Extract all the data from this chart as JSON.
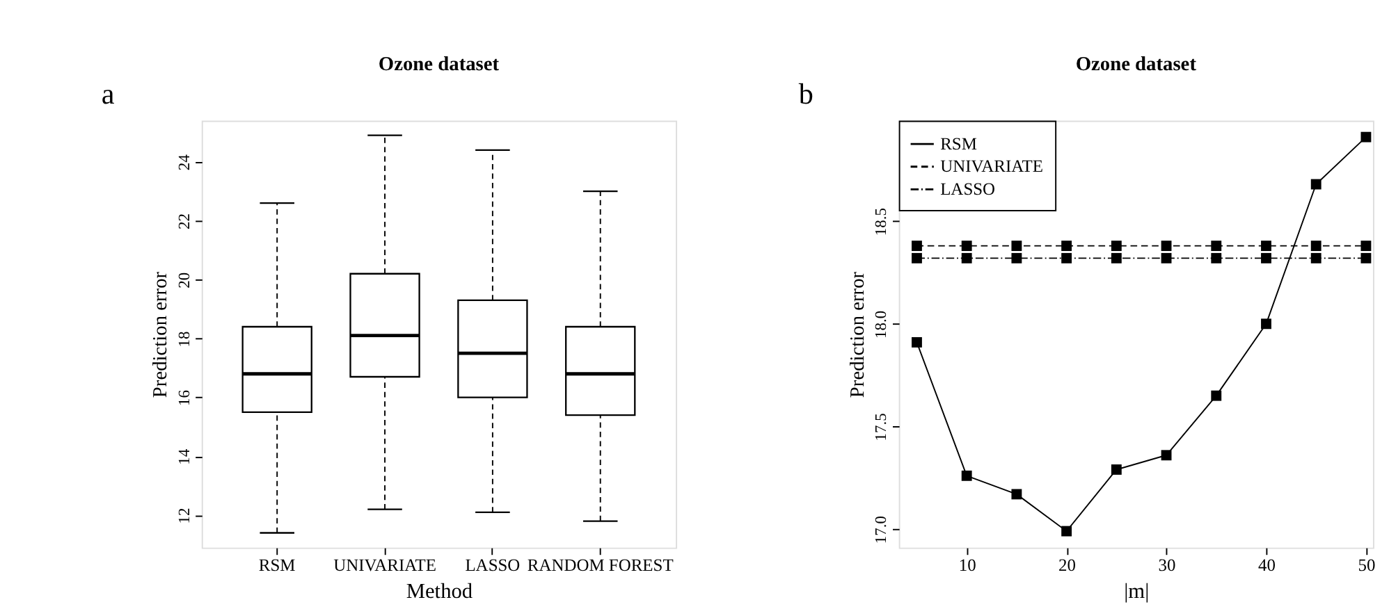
{
  "chart_data": [
    {
      "type": "box",
      "title": "Ozone dataset",
      "xlabel": "Method",
      "ylabel": "Prediction error",
      "annotations": [
        "a"
      ],
      "categories": [
        "RSM",
        "UNIVARIATE",
        "LASSO",
        "RANDOM FOREST"
      ],
      "boxes": [
        {
          "low": 11.4,
          "q1": 15.5,
          "median": 16.8,
          "q3": 18.4,
          "high": 22.6
        },
        {
          "low": 12.2,
          "q1": 16.7,
          "median": 18.1,
          "q3": 20.2,
          "high": 24.9
        },
        {
          "low": 12.1,
          "q1": 16.0,
          "median": 17.5,
          "q3": 19.3,
          "high": 24.4
        },
        {
          "low": 11.8,
          "q1": 15.4,
          "median": 16.8,
          "q3": 18.4,
          "high": 23.0
        }
      ],
      "color": "#ffffff",
      "ylim": [
        10.9,
        25.4
      ],
      "yticks": [
        12,
        14,
        16,
        18,
        20,
        22,
        24
      ],
      "grid": false
    },
    {
      "type": "line",
      "title": "Ozone dataset",
      "xlabel": "|m|",
      "ylabel": "Prediction error",
      "annotations": [
        "b"
      ],
      "x": [
        5,
        10,
        15,
        20,
        25,
        30,
        35,
        40,
        45,
        50
      ],
      "series": [
        {
          "name": "RSM",
          "color": "#000000",
          "line_style": "solid",
          "values": [
            17.91,
            17.26,
            17.17,
            16.99,
            17.29,
            17.36,
            17.65,
            18.0,
            18.68,
            18.91
          ]
        },
        {
          "name": "UNIVARIATE",
          "color": "#000000",
          "line_style": "dashed",
          "values": [
            18.38,
            18.38,
            18.38,
            18.38,
            18.38,
            18.38,
            18.38,
            18.38,
            18.38,
            18.38
          ]
        },
        {
          "name": "LASSO",
          "color": "#000000",
          "line_style": "dashdot",
          "values": [
            18.32,
            18.32,
            18.32,
            18.32,
            18.32,
            18.32,
            18.32,
            18.32,
            18.32,
            18.32
          ]
        }
      ],
      "marker": "square",
      "xlim": [
        3.2,
        50.7
      ],
      "xticks": [
        10,
        20,
        30,
        40,
        50
      ],
      "ylim": [
        16.91,
        18.99
      ],
      "yticks": [
        {
          "value": 17,
          "label": "17.0"
        },
        17.5,
        {
          "value": 18,
          "label": "18.0"
        },
        18.5
      ],
      "grid": false,
      "legend": "top left"
    }
  ]
}
